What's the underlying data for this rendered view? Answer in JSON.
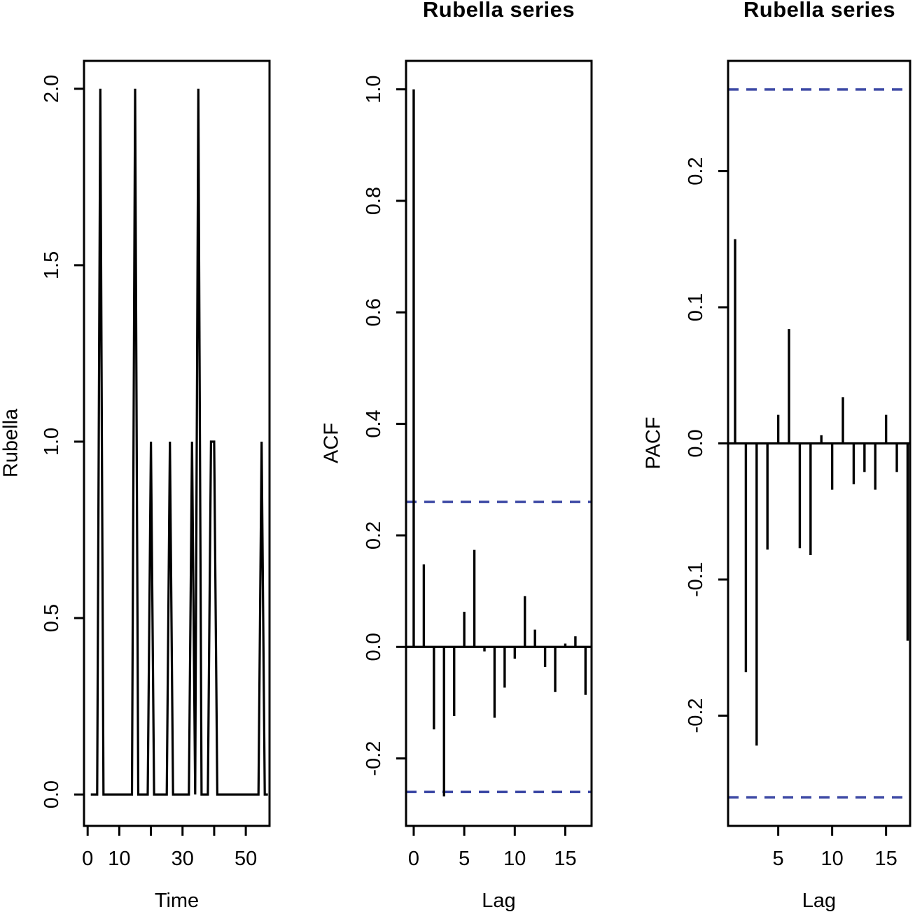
{
  "colors": {
    "background": "#ffffff",
    "foreground": "#000000",
    "confidence_band": "#3d49a5"
  },
  "chart_data": [
    {
      "id": "time-series",
      "type": "line",
      "title": "",
      "xlabel": "Time",
      "ylabel": "Rubella",
      "x": [
        1,
        2,
        3,
        4,
        5,
        6,
        7,
        8,
        9,
        10,
        11,
        12,
        13,
        14,
        15,
        16,
        17,
        18,
        19,
        20,
        21,
        22,
        23,
        24,
        25,
        26,
        27,
        28,
        29,
        30,
        31,
        32,
        33,
        34,
        35,
        36,
        37,
        38,
        39,
        40,
        41,
        42,
        43,
        44,
        45,
        46,
        47,
        48,
        49,
        50,
        51,
        52,
        53,
        54,
        55,
        56,
        57
      ],
      "values": [
        0,
        0,
        0,
        2,
        0,
        0,
        0,
        0,
        0,
        0,
        0,
        0,
        0,
        0,
        2,
        0,
        0,
        0,
        0,
        1,
        0,
        0,
        0,
        0,
        0,
        1,
        0,
        0,
        0,
        0,
        0,
        0,
        1,
        0,
        2,
        0,
        0,
        0,
        1,
        1,
        0,
        0,
        0,
        0,
        0,
        0,
        0,
        0,
        0,
        0,
        0,
        0,
        0,
        0,
        1,
        0,
        0
      ],
      "xlim": [
        -1.15,
        57.5
      ],
      "ylim": [
        -0.089,
        2.079
      ],
      "x_tick_values": [
        0,
        10,
        20,
        30,
        40,
        50
      ],
      "x_tick_labels": [
        "0",
        "10",
        "",
        "30",
        "",
        "50"
      ],
      "y_tick_values": [
        0,
        0.5,
        1,
        1.5,
        2
      ],
      "y_tick_labels": [
        "0.0",
        "0.5",
        "1.0",
        "1.5",
        "2.0"
      ],
      "grid": false
    },
    {
      "id": "acf",
      "type": "bar",
      "title": "Rubella series",
      "xlabel": "Lag",
      "ylabel": "ACF",
      "lags": [
        0,
        1,
        2,
        3,
        4,
        5,
        6,
        7,
        8,
        9,
        10,
        11,
        12,
        13,
        14,
        15,
        16,
        17
      ],
      "values": [
        1.0,
        0.148,
        -0.148,
        -0.268,
        -0.124,
        0.063,
        0.174,
        -0.008,
        -0.127,
        -0.073,
        -0.021,
        0.091,
        0.031,
        -0.036,
        -0.081,
        0.006,
        0.019,
        -0.086
      ],
      "confidence_band": 0.26,
      "xlim": [
        -0.76,
        17.6
      ],
      "ylim": [
        -0.321,
        1.051
      ],
      "x_tick_values": [
        0,
        5,
        10,
        15
      ],
      "x_tick_labels": [
        "0",
        "5",
        "10",
        "15"
      ],
      "y_tick_values": [
        -0.2,
        0,
        0.2,
        0.4,
        0.6,
        0.8,
        1.0
      ],
      "y_tick_labels": [
        "-0.2",
        "0.0",
        "0.2",
        "0.4",
        "0.6",
        "0.8",
        "1.0"
      ],
      "grid": false
    },
    {
      "id": "pacf",
      "type": "bar",
      "title": "Rubella series",
      "xlabel": "Lag",
      "ylabel": "PACF",
      "lags": [
        1,
        2,
        3,
        4,
        5,
        6,
        7,
        8,
        9,
        10,
        11,
        12,
        13,
        14,
        15,
        16,
        17
      ],
      "values": [
        0.15,
        -0.168,
        -0.222,
        -0.078,
        0.021,
        0.084,
        -0.077,
        -0.082,
        0.006,
        -0.034,
        0.034,
        -0.03,
        -0.021,
        -0.034,
        0.021,
        -0.021,
        -0.145
      ],
      "confidence_band": 0.26,
      "xlim": [
        0.35,
        17.23
      ],
      "ylim": [
        -0.281,
        0.281
      ],
      "x_tick_values": [
        5,
        10,
        15
      ],
      "x_tick_labels": [
        "5",
        "10",
        "15"
      ],
      "y_tick_values": [
        -0.2,
        -0.1,
        0,
        0.1,
        0.2
      ],
      "y_tick_labels": [
        "-0.2",
        "-0.1",
        "0.0",
        "0.1",
        "0.2"
      ],
      "grid": false
    }
  ]
}
